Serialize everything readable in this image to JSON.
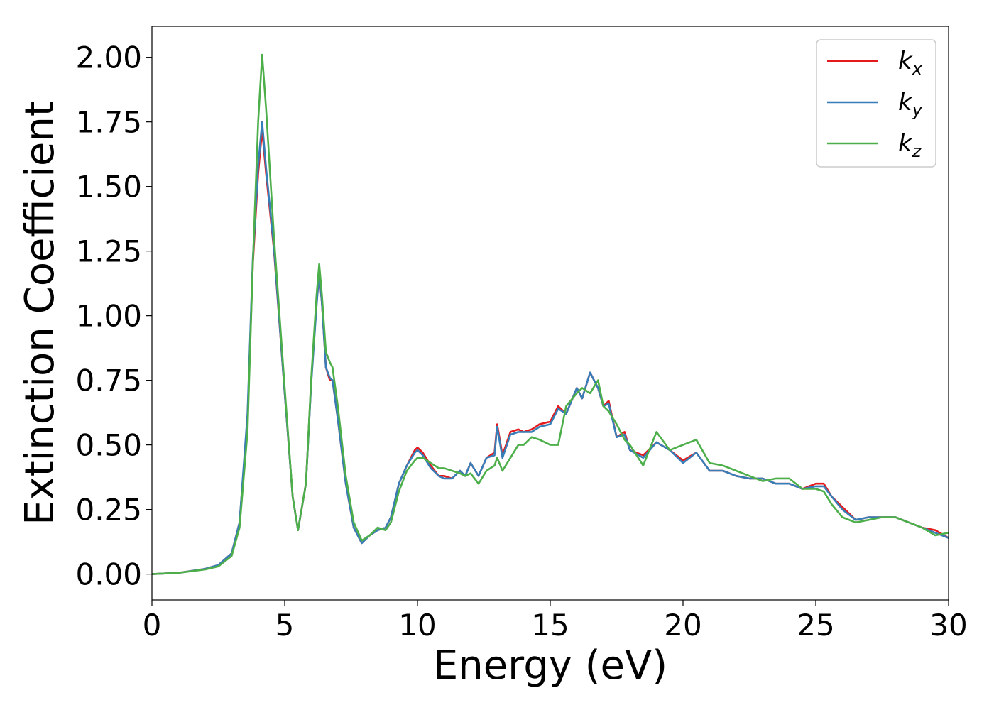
{
  "chart_data": {
    "type": "line",
    "title": "",
    "xlabel": "Energy (eV)",
    "ylabel": "Extinction Coefficient",
    "xlim": [
      0,
      30
    ],
    "ylim": [
      -0.1,
      2.12
    ],
    "xticks": [
      0,
      5,
      10,
      15,
      20,
      25,
      30
    ],
    "xtick_labels": [
      "0",
      "5",
      "10",
      "15",
      "20",
      "25",
      "30"
    ],
    "yticks": [
      0.0,
      0.25,
      0.5,
      0.75,
      1.0,
      1.25,
      1.5,
      1.75,
      2.0
    ],
    "ytick_labels": [
      "0.00",
      "0.25",
      "0.50",
      "0.75",
      "1.00",
      "1.25",
      "1.50",
      "1.75",
      "2.00"
    ],
    "grid": false,
    "legend_position": "top-right",
    "series": [
      {
        "name": "k",
        "subscript": "x",
        "color": "#e41a1c",
        "x": [
          0,
          1,
          2,
          2.5,
          3,
          3.3,
          3.6,
          3.8,
          4.0,
          4.15,
          4.3,
          4.6,
          5.0,
          5.3,
          5.5,
          5.8,
          6.0,
          6.2,
          6.3,
          6.4,
          6.55,
          6.7,
          6.8,
          7.0,
          7.3,
          7.6,
          7.9,
          8.2,
          8.5,
          8.8,
          9.0,
          9.3,
          9.6,
          9.9,
          10.0,
          10.2,
          10.5,
          10.8,
          11.0,
          11.3,
          11.6,
          11.8,
          12.0,
          12.3,
          12.6,
          12.9,
          13.0,
          13.2,
          13.5,
          13.8,
          14.0,
          14.3,
          14.6,
          15.0,
          15.3,
          15.6,
          16.0,
          16.2,
          16.5,
          16.8,
          17.0,
          17.2,
          17.5,
          17.8,
          18.0,
          18.5,
          19.0,
          19.5,
          20.0,
          20.5,
          21.0,
          21.5,
          22.0,
          22.5,
          23.0,
          23.5,
          24.0,
          24.5,
          25.0,
          25.3,
          25.6,
          26.0,
          26.5,
          27.0,
          27.5,
          28.0,
          28.5,
          29.0,
          29.5,
          30.0
        ],
        "y": [
          0.0,
          0.005,
          0.02,
          0.035,
          0.08,
          0.2,
          0.6,
          1.2,
          1.55,
          1.72,
          1.55,
          1.25,
          0.7,
          0.3,
          0.17,
          0.35,
          0.75,
          1.05,
          1.16,
          1.05,
          0.8,
          0.75,
          0.75,
          0.6,
          0.35,
          0.18,
          0.12,
          0.15,
          0.17,
          0.18,
          0.22,
          0.35,
          0.42,
          0.48,
          0.49,
          0.47,
          0.42,
          0.38,
          0.38,
          0.37,
          0.4,
          0.38,
          0.43,
          0.38,
          0.45,
          0.47,
          0.58,
          0.46,
          0.55,
          0.56,
          0.55,
          0.56,
          0.58,
          0.59,
          0.65,
          0.62,
          0.72,
          0.68,
          0.78,
          0.72,
          0.65,
          0.67,
          0.53,
          0.55,
          0.48,
          0.46,
          0.51,
          0.48,
          0.44,
          0.47,
          0.4,
          0.4,
          0.38,
          0.37,
          0.37,
          0.35,
          0.35,
          0.33,
          0.35,
          0.35,
          0.3,
          0.26,
          0.21,
          0.22,
          0.22,
          0.22,
          0.2,
          0.18,
          0.17,
          0.14
        ]
      },
      {
        "name": "k",
        "subscript": "y",
        "color": "#377eb8",
        "x": [
          0,
          1,
          2,
          2.5,
          3,
          3.3,
          3.6,
          3.8,
          4.0,
          4.15,
          4.3,
          4.6,
          5.0,
          5.3,
          5.5,
          5.8,
          6.0,
          6.2,
          6.3,
          6.4,
          6.55,
          6.7,
          6.8,
          7.0,
          7.3,
          7.6,
          7.9,
          8.2,
          8.5,
          8.8,
          9.0,
          9.3,
          9.6,
          9.9,
          10.0,
          10.2,
          10.5,
          10.8,
          11.0,
          11.3,
          11.6,
          11.8,
          12.0,
          12.3,
          12.6,
          12.9,
          13.0,
          13.2,
          13.5,
          13.8,
          14.0,
          14.3,
          14.6,
          15.0,
          15.3,
          15.6,
          16.0,
          16.2,
          16.5,
          16.8,
          17.0,
          17.2,
          17.5,
          17.8,
          18.0,
          18.5,
          19.0,
          19.5,
          20.0,
          20.5,
          21.0,
          21.5,
          22.0,
          22.5,
          23.0,
          23.5,
          24.0,
          24.5,
          25.0,
          25.3,
          25.6,
          26.0,
          26.5,
          27.0,
          27.5,
          28.0,
          28.5,
          29.0,
          29.5,
          30.0
        ],
        "y": [
          0.0,
          0.005,
          0.02,
          0.035,
          0.08,
          0.2,
          0.62,
          1.22,
          1.58,
          1.75,
          1.57,
          1.26,
          0.7,
          0.3,
          0.17,
          0.35,
          0.74,
          1.04,
          1.17,
          1.05,
          0.8,
          0.76,
          0.75,
          0.6,
          0.35,
          0.18,
          0.12,
          0.15,
          0.17,
          0.18,
          0.22,
          0.35,
          0.42,
          0.47,
          0.48,
          0.46,
          0.41,
          0.38,
          0.37,
          0.37,
          0.4,
          0.38,
          0.43,
          0.38,
          0.45,
          0.46,
          0.57,
          0.45,
          0.54,
          0.55,
          0.55,
          0.55,
          0.57,
          0.58,
          0.64,
          0.62,
          0.72,
          0.68,
          0.78,
          0.72,
          0.65,
          0.66,
          0.53,
          0.54,
          0.48,
          0.45,
          0.51,
          0.48,
          0.43,
          0.47,
          0.4,
          0.4,
          0.38,
          0.37,
          0.37,
          0.35,
          0.35,
          0.33,
          0.34,
          0.34,
          0.3,
          0.25,
          0.21,
          0.22,
          0.22,
          0.22,
          0.2,
          0.18,
          0.16,
          0.14
        ]
      },
      {
        "name": "k",
        "subscript": "z",
        "color": "#4daf4a",
        "x": [
          0,
          1,
          2,
          2.5,
          3,
          3.3,
          3.6,
          3.8,
          4.0,
          4.15,
          4.3,
          4.6,
          5.0,
          5.3,
          5.5,
          5.8,
          6.0,
          6.2,
          6.3,
          6.4,
          6.55,
          6.7,
          6.8,
          7.0,
          7.3,
          7.6,
          7.9,
          8.2,
          8.5,
          8.8,
          9.0,
          9.3,
          9.6,
          9.9,
          10.0,
          10.2,
          10.5,
          10.8,
          11.0,
          11.3,
          11.6,
          11.8,
          12.0,
          12.3,
          12.6,
          12.9,
          13.0,
          13.2,
          13.5,
          13.8,
          14.0,
          14.3,
          14.6,
          15.0,
          15.3,
          15.6,
          16.0,
          16.2,
          16.5,
          16.8,
          17.0,
          17.2,
          17.5,
          17.8,
          18.0,
          18.5,
          19.0,
          19.5,
          20.0,
          20.5,
          21.0,
          21.5,
          22.0,
          22.5,
          23.0,
          23.5,
          24.0,
          24.5,
          25.0,
          25.3,
          25.6,
          26.0,
          26.5,
          27.0,
          27.5,
          28.0,
          28.5,
          29.0,
          29.5,
          30.0
        ],
        "y": [
          0.0,
          0.005,
          0.018,
          0.03,
          0.07,
          0.18,
          0.55,
          1.2,
          1.75,
          2.01,
          1.8,
          1.3,
          0.72,
          0.3,
          0.17,
          0.35,
          0.76,
          1.08,
          1.2,
          1.08,
          0.86,
          0.82,
          0.8,
          0.65,
          0.38,
          0.2,
          0.13,
          0.15,
          0.18,
          0.17,
          0.2,
          0.32,
          0.4,
          0.44,
          0.45,
          0.45,
          0.43,
          0.41,
          0.41,
          0.4,
          0.39,
          0.38,
          0.39,
          0.35,
          0.4,
          0.42,
          0.45,
          0.4,
          0.45,
          0.5,
          0.5,
          0.53,
          0.52,
          0.5,
          0.5,
          0.65,
          0.7,
          0.72,
          0.7,
          0.75,
          0.65,
          0.63,
          0.58,
          0.52,
          0.5,
          0.42,
          0.55,
          0.48,
          0.5,
          0.52,
          0.43,
          0.42,
          0.4,
          0.38,
          0.36,
          0.37,
          0.37,
          0.33,
          0.33,
          0.32,
          0.27,
          0.22,
          0.2,
          0.21,
          0.22,
          0.22,
          0.2,
          0.18,
          0.15,
          0.16
        ]
      }
    ]
  }
}
